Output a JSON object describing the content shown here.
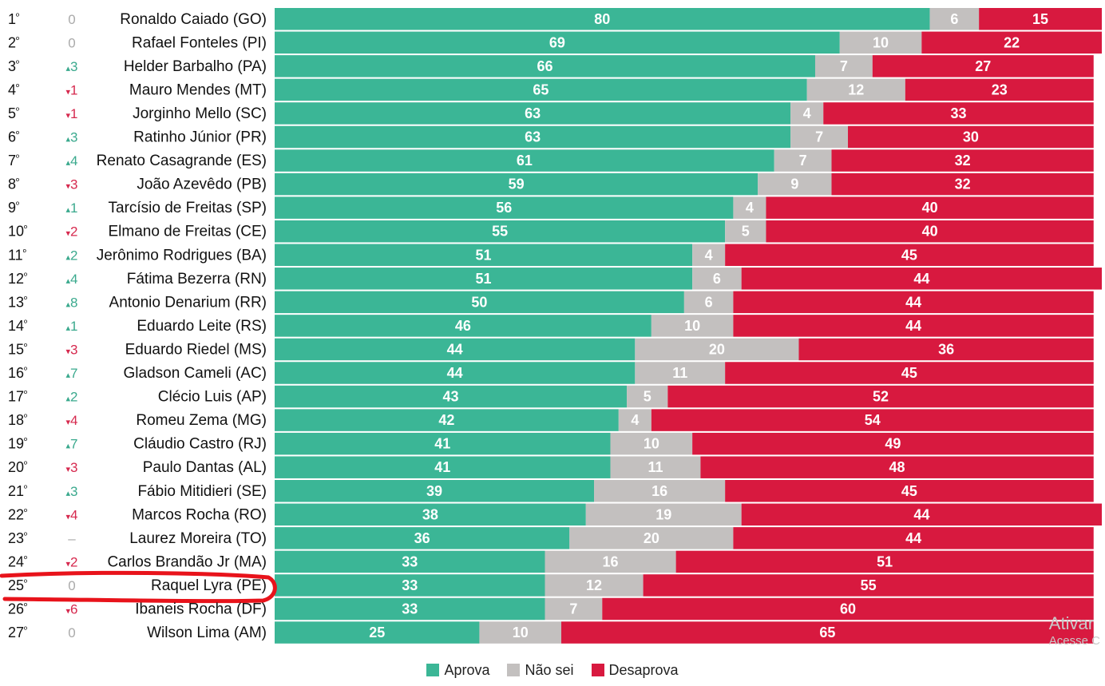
{
  "chart_data": {
    "type": "bar",
    "stacked": true,
    "orientation": "horizontal",
    "title": "",
    "xlabel": "",
    "ylabel": "",
    "xlim": [
      0,
      101
    ],
    "legend_position": "bottom-center",
    "grid": false,
    "colors": {
      "Aprova": "#3bb696",
      "Não sei": "#c3c0bf",
      "Desaprova": "#d8193f",
      "up": "#3aa98d",
      "down": "#d6294e",
      "neutral": "#aaaaaa",
      "highlight": "#e8131b"
    },
    "series": [
      {
        "name": "Aprova",
        "values": [
          80,
          69,
          66,
          65,
          63,
          63,
          61,
          59,
          56,
          55,
          51,
          51,
          50,
          46,
          44,
          44,
          43,
          42,
          41,
          41,
          39,
          38,
          36,
          33,
          33,
          33,
          25
        ]
      },
      {
        "name": "Não sei",
        "values": [
          6,
          10,
          7,
          12,
          4,
          7,
          7,
          9,
          4,
          5,
          4,
          6,
          6,
          10,
          20,
          11,
          5,
          4,
          10,
          11,
          16,
          19,
          20,
          16,
          12,
          7,
          10
        ]
      },
      {
        "name": "Desaprova",
        "values": [
          15,
          22,
          27,
          23,
          33,
          30,
          32,
          32,
          40,
          40,
          45,
          44,
          44,
          44,
          36,
          45,
          52,
          54,
          49,
          48,
          45,
          44,
          44,
          51,
          55,
          60,
          65
        ]
      }
    ],
    "rows": [
      {
        "rank": "1",
        "change": "0",
        "dir": "none",
        "name": "Ronaldo Caiado (GO)"
      },
      {
        "rank": "2",
        "change": "0",
        "dir": "none",
        "name": "Rafael Fonteles (PI)"
      },
      {
        "rank": "3",
        "change": "3",
        "dir": "up",
        "name": "Helder Barbalho (PA)"
      },
      {
        "rank": "4",
        "change": "1",
        "dir": "down",
        "name": "Mauro Mendes (MT)"
      },
      {
        "rank": "5",
        "change": "1",
        "dir": "down",
        "name": "Jorginho Mello (SC)"
      },
      {
        "rank": "6",
        "change": "3",
        "dir": "up",
        "name": "Ratinho Júnior (PR)"
      },
      {
        "rank": "7",
        "change": "4",
        "dir": "up",
        "name": "Renato Casagrande (ES)"
      },
      {
        "rank": "8",
        "change": "3",
        "dir": "down",
        "name": "João Azevêdo (PB)"
      },
      {
        "rank": "9",
        "change": "1",
        "dir": "up",
        "name": "Tarcísio de Freitas (SP)"
      },
      {
        "rank": "10",
        "change": "2",
        "dir": "down",
        "name": "Elmano de Freitas (CE)"
      },
      {
        "rank": "11",
        "change": "2",
        "dir": "up",
        "name": "Jerônimo Rodrigues (BA)"
      },
      {
        "rank": "12",
        "change": "4",
        "dir": "up",
        "name": "Fátima Bezerra (RN)"
      },
      {
        "rank": "13",
        "change": "8",
        "dir": "up",
        "name": "Antonio Denarium (RR)"
      },
      {
        "rank": "14",
        "change": "1",
        "dir": "up",
        "name": "Eduardo Leite (RS)"
      },
      {
        "rank": "15",
        "change": "3",
        "dir": "down",
        "name": "Eduardo Riedel (MS)"
      },
      {
        "rank": "16",
        "change": "7",
        "dir": "up",
        "name": "Gladson Cameli (AC)"
      },
      {
        "rank": "17",
        "change": "2",
        "dir": "up",
        "name": "Clécio Luis (AP)"
      },
      {
        "rank": "18",
        "change": "4",
        "dir": "down",
        "name": "Romeu Zema (MG)"
      },
      {
        "rank": "19",
        "change": "7",
        "dir": "up",
        "name": "Cláudio Castro (RJ)"
      },
      {
        "rank": "20",
        "change": "3",
        "dir": "down",
        "name": "Paulo Dantas (AL)"
      },
      {
        "rank": "21",
        "change": "3",
        "dir": "up",
        "name": "Fábio Mitidieri (SE)"
      },
      {
        "rank": "22",
        "change": "4",
        "dir": "down",
        "name": "Marcos Rocha (RO)"
      },
      {
        "rank": "23",
        "change": "–",
        "dir": "none",
        "name": "Laurez Moreira (TO)"
      },
      {
        "rank": "24",
        "change": "2",
        "dir": "down",
        "name": "Carlos Brandão Jr (MA)"
      },
      {
        "rank": "25",
        "change": "0",
        "dir": "none",
        "name": "Raquel Lyra (PE)",
        "highlighted": true
      },
      {
        "rank": "26",
        "change": "6",
        "dir": "down",
        "name": "Ibaneis Rocha (DF)"
      },
      {
        "rank": "27",
        "change": "0",
        "dir": "none",
        "name": "Wilson Lima (AM)"
      }
    ],
    "rank_suffix": "º",
    "up_marker": "▴",
    "down_marker": "▾"
  },
  "legend": {
    "items": [
      {
        "label": "Aprova",
        "color": "#3bb696"
      },
      {
        "label": "Não sei",
        "color": "#c3c0bf"
      },
      {
        "label": "Desaprova",
        "color": "#d8193f"
      }
    ]
  },
  "watermark": {
    "line1": "Ativar",
    "line2": "Acesse C"
  }
}
